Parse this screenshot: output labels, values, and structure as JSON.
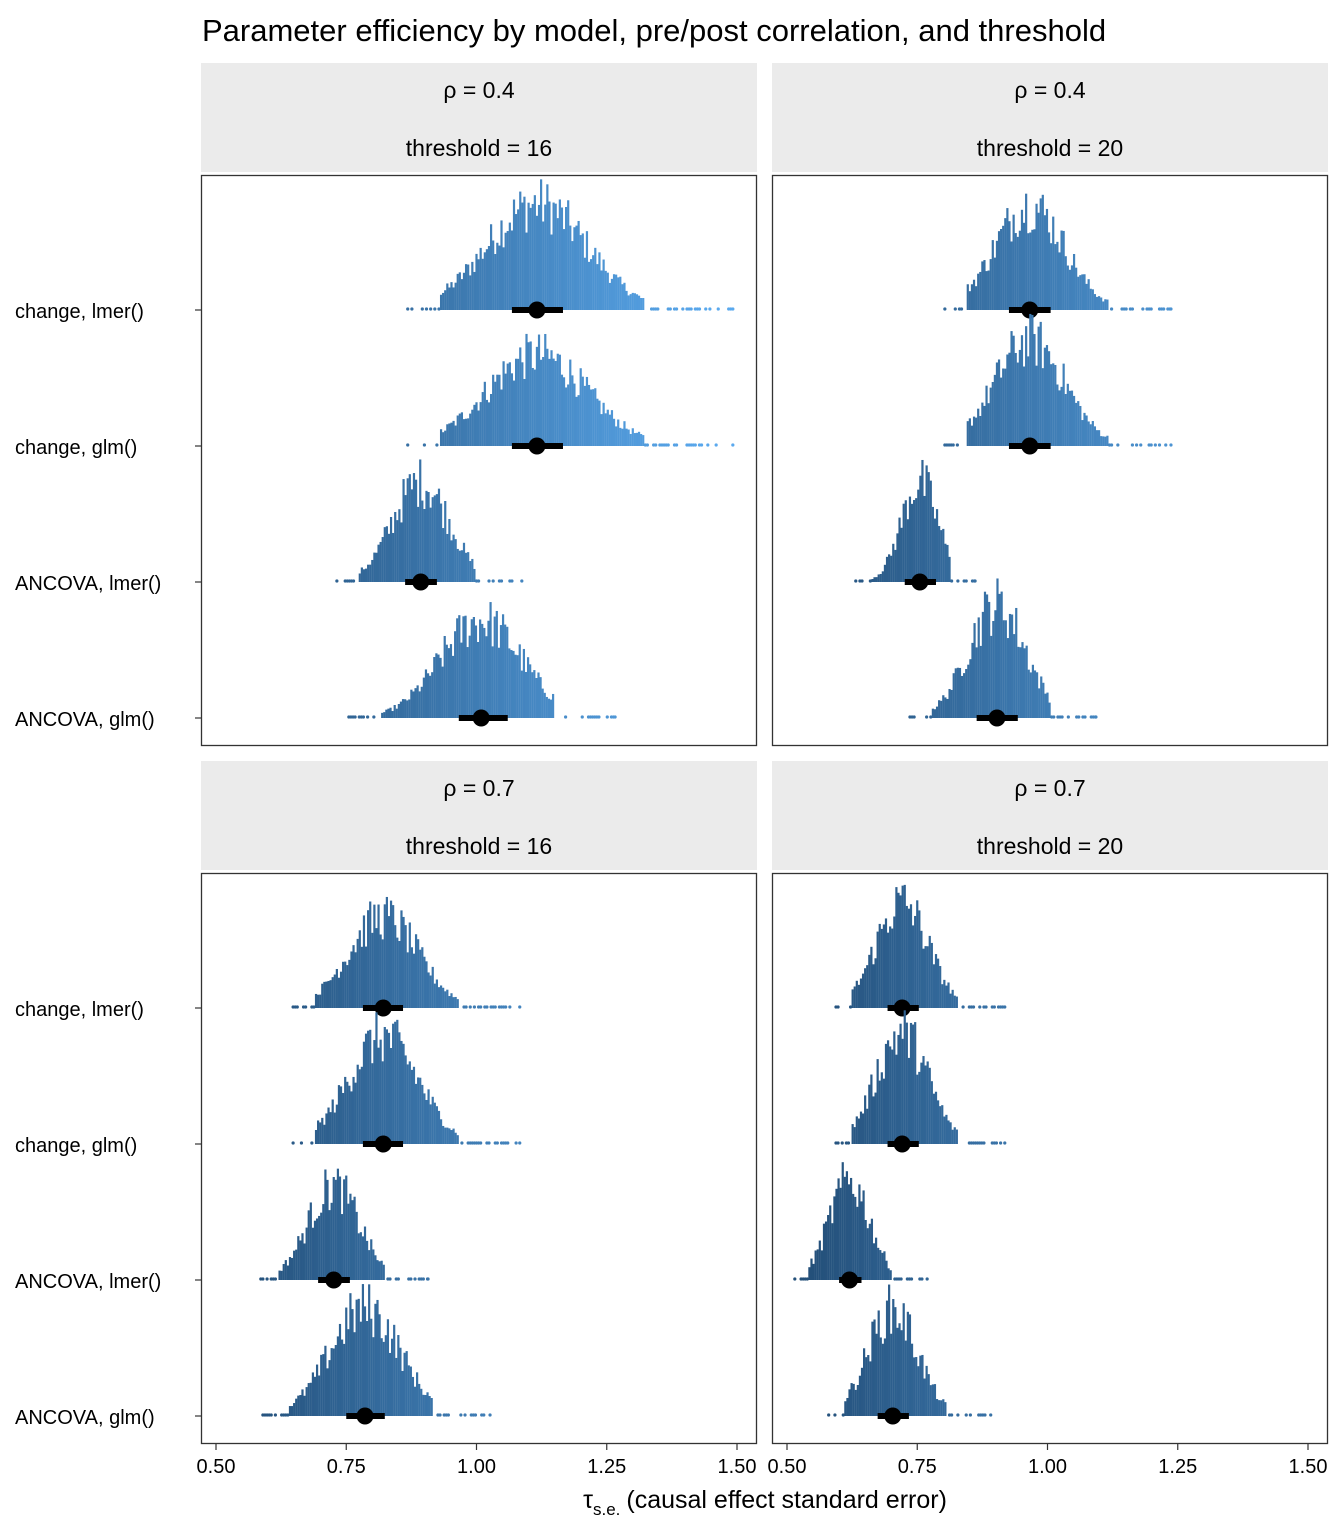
{
  "chart_data": {
    "type": "dotplot-histogram",
    "title": "Parameter efficiency by model, pre/post correlation, and threshold",
    "xlabel_symbol": "τ",
    "xlabel_subscript": "s.e.",
    "xlabel_text": "(causal effect standard error)",
    "xlim": [
      0.5,
      1.5
    ],
    "xticks": [
      "0.50",
      "0.75",
      "1.00",
      "1.25",
      "1.50"
    ],
    "xtick_values": [
      0.5,
      0.75,
      1.0,
      1.25,
      1.5
    ],
    "rows": [
      "change, lmer()",
      "change, glm()",
      "ANCOVA, lmer()",
      "ANCOVA, glm()"
    ],
    "color_low": "#24507a",
    "color_high": "#5aa9ee",
    "panels": [
      {
        "strip_rho": "ρ = 0.4",
        "strip_threshold": "threshold = 16",
        "series": [
          {
            "name": "change, lmer()",
            "median": 1.116,
            "interval": [
              1.068,
              1.166
            ],
            "min": 0.868,
            "max": 1.492
          },
          {
            "name": "change, glm()",
            "median": 1.116,
            "interval": [
              1.068,
              1.166
            ],
            "min": 0.868,
            "max": 1.492
          },
          {
            "name": "ANCOVA, lmer()",
            "median": 0.893,
            "interval": [
              0.863,
              0.924
            ],
            "min": 0.732,
            "max": 1.087
          },
          {
            "name": "ANCOVA, glm()",
            "median": 1.009,
            "interval": [
              0.966,
              1.06
            ],
            "min": 0.755,
            "max": 1.266
          }
        ]
      },
      {
        "strip_rho": "ρ = 0.4",
        "strip_threshold": "threshold = 20",
        "series": [
          {
            "name": "change, lmer()",
            "median": 0.966,
            "interval": [
              0.926,
              1.006
            ],
            "min": 0.803,
            "max": 1.237
          },
          {
            "name": "change, glm()",
            "median": 0.966,
            "interval": [
              0.926,
              1.006
            ],
            "min": 0.803,
            "max": 1.237
          },
          {
            "name": "ANCOVA, lmer()",
            "median": 0.755,
            "interval": [
              0.726,
              0.786
            ],
            "min": 0.632,
            "max": 0.861
          },
          {
            "name": "ANCOVA, glm()",
            "median": 0.903,
            "interval": [
              0.864,
              0.943
            ],
            "min": 0.736,
            "max": 1.093
          }
        ]
      },
      {
        "strip_rho": "ρ = 0.7",
        "strip_threshold": "threshold = 16",
        "series": [
          {
            "name": "change, lmer()",
            "median": 0.821,
            "interval": [
              0.782,
              0.859
            ],
            "min": 0.648,
            "max": 1.083
          },
          {
            "name": "change, glm()",
            "median": 0.821,
            "interval": [
              0.782,
              0.859
            ],
            "min": 0.648,
            "max": 1.083
          },
          {
            "name": "ANCOVA, lmer()",
            "median": 0.726,
            "interval": [
              0.696,
              0.757
            ],
            "min": 0.586,
            "max": 0.907
          },
          {
            "name": "ANCOVA, glm()",
            "median": 0.786,
            "interval": [
              0.75,
              0.824
            ],
            "min": 0.59,
            "max": 1.026
          }
        ]
      },
      {
        "strip_rho": "ρ = 0.7",
        "strip_threshold": "threshold = 20",
        "series": [
          {
            "name": "change, lmer()",
            "median": 0.721,
            "interval": [
              0.693,
              0.753
            ],
            "min": 0.594,
            "max": 0.918
          },
          {
            "name": "change, glm()",
            "median": 0.721,
            "interval": [
              0.693,
              0.753
            ],
            "min": 0.594,
            "max": 0.918
          },
          {
            "name": "ANCOVA, lmer()",
            "median": 0.62,
            "interval": [
              0.6,
              0.643
            ],
            "min": 0.515,
            "max": 0.769
          },
          {
            "name": "ANCOVA, glm()",
            "median": 0.703,
            "interval": [
              0.674,
              0.734
            ],
            "min": 0.58,
            "max": 0.891
          }
        ]
      }
    ]
  }
}
